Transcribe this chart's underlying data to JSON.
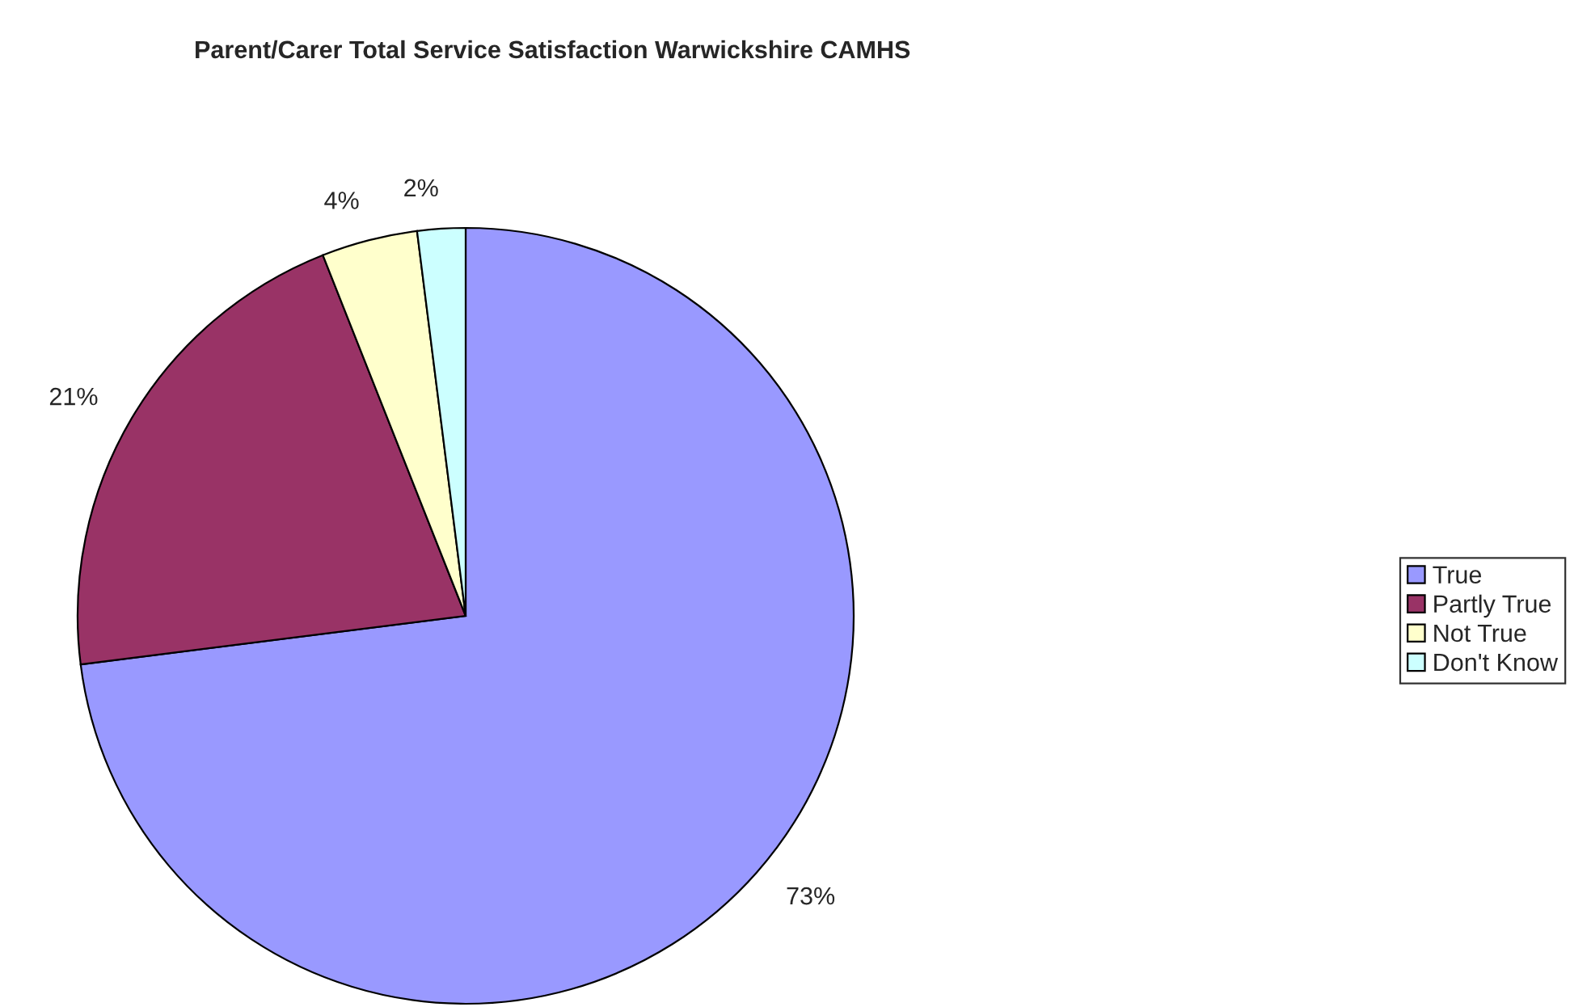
{
  "chart_data": {
    "type": "pie",
    "title": "Parent/Carer Total Service Satisfaction Warwickshire CAMHS",
    "categories": [
      "True",
      "Partly True",
      "Not True",
      "Don't Know"
    ],
    "values": [
      73,
      21,
      4,
      2
    ],
    "colors": [
      "#9999ff",
      "#993366",
      "#ffffcc",
      "#ccffff"
    ],
    "value_labels": [
      "73%",
      "21%",
      "4%",
      "2%"
    ],
    "legend": "right"
  }
}
